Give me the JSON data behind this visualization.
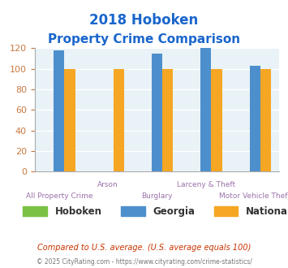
{
  "title_line1": "2018 Hoboken",
  "title_line2": "Property Crime Comparison",
  "title_color": "#1a66cc",
  "categories": [
    "All Property Crime",
    "Arson",
    "Burglary",
    "Larceny & Theft",
    "Motor Vehicle Theft"
  ],
  "hoboken": [
    0,
    0,
    0,
    0,
    0
  ],
  "georgia": [
    118,
    0,
    115,
    120,
    103
  ],
  "national": [
    100,
    100,
    100,
    100,
    100
  ],
  "hoboken_color": "#7bc143",
  "georgia_color": "#4d8fcc",
  "national_color": "#f5a623",
  "ylim": [
    0,
    120
  ],
  "yticks": [
    0,
    20,
    40,
    60,
    80,
    100,
    120
  ],
  "ytick_color": "#c87941",
  "xlabel_color": "#9b72aa",
  "plot_bg_color": "#e8f2f7",
  "grid_color": "#ffffff",
  "legend_labels": [
    "Hoboken",
    "Georgia",
    "National"
  ],
  "footnote1": "Compared to U.S. average. (U.S. average equals 100)",
  "footnote2": "© 2025 CityRating.com - https://www.cityrating.com/crime-statistics/",
  "footnote1_color": "#cc3300",
  "footnote2_color": "#777777",
  "line1_cats": {
    "1": "Arson",
    "3": "Larceny & Theft"
  },
  "line2_cats": {
    "0": "All Property Crime",
    "2": "Burglary",
    "4": "Motor Vehicle Theft"
  }
}
